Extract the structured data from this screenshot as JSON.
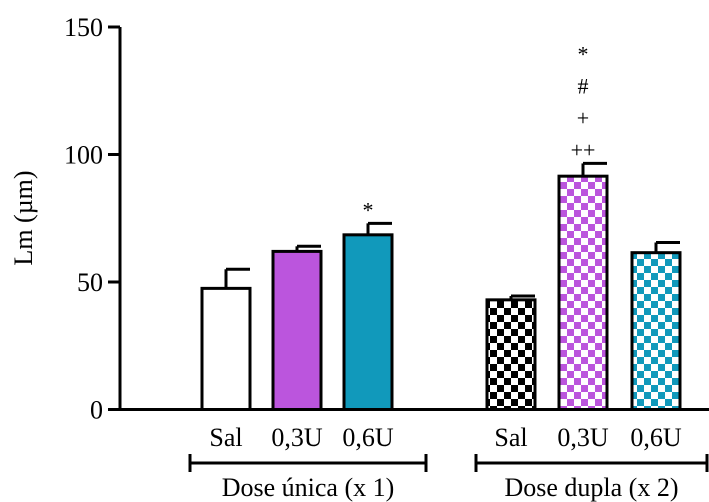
{
  "chart_data": {
    "type": "bar",
    "xlabel": "",
    "ylabel": "Lm (µm)",
    "ylim": [
      0,
      150
    ],
    "yticks": [
      0,
      50,
      100,
      150
    ],
    "groups": [
      {
        "label": "Dose única (x 1)",
        "categories": [
          "Sal",
          "0,3U",
          "0,6U"
        ]
      },
      {
        "label": "Dose dupla (x 2)",
        "categories": [
          "Sal",
          "0,3U",
          "0,6U"
        ]
      }
    ],
    "bars": [
      {
        "group": 0,
        "category": "Sal",
        "value": 47.5,
        "error": 7.5,
        "fill": "white",
        "color": "#ffffff",
        "annotations": []
      },
      {
        "group": 0,
        "category": "0,3U",
        "value": 62.0,
        "error": 2.0,
        "fill": "solid",
        "color": "#bb55dd",
        "annotations": []
      },
      {
        "group": 0,
        "category": "0,6U",
        "value": 68.5,
        "error": 4.5,
        "fill": "solid",
        "color": "#1199bb",
        "annotations": [
          "*"
        ]
      },
      {
        "group": 1,
        "category": "Sal",
        "value": 43.0,
        "error": 1.5,
        "fill": "checker",
        "color": "#000000",
        "annotations": []
      },
      {
        "group": 1,
        "category": "0,3U",
        "value": 91.5,
        "error": 5.0,
        "fill": "checker",
        "color": "#bb55dd",
        "annotations": [
          "*",
          "#",
          "+",
          "++"
        ]
      },
      {
        "group": 1,
        "category": "0,6U",
        "value": 61.5,
        "error": 4.0,
        "fill": "checker",
        "color": "#1199bb",
        "annotations": []
      }
    ],
    "grid": false,
    "legend": "none"
  }
}
